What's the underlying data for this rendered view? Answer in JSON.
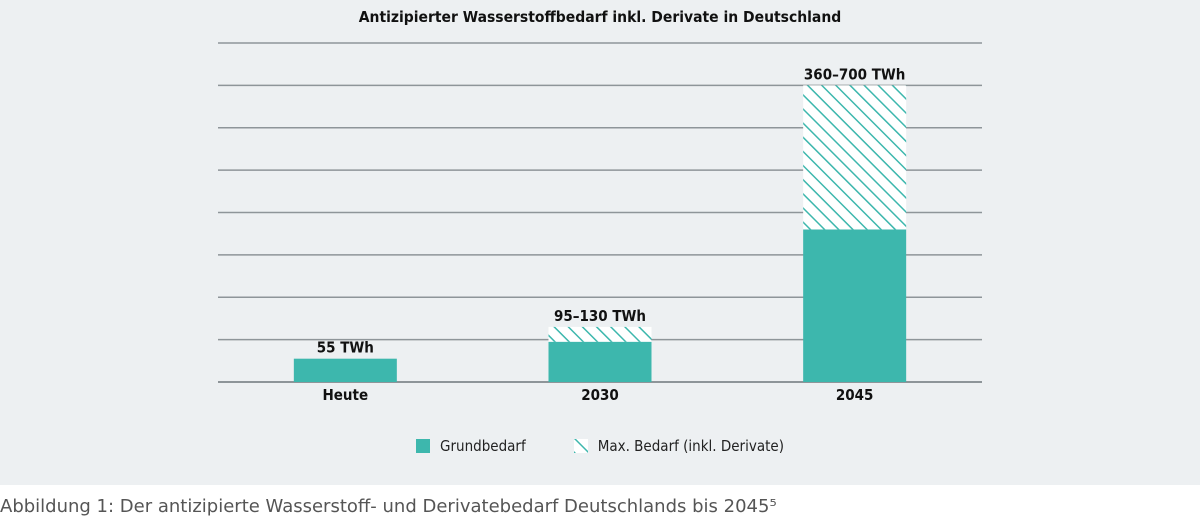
{
  "colors": {
    "base": "#3db7ad",
    "hatch": "#3db7ad",
    "grid": "#8e9599",
    "panel": "#edf0f2"
  },
  "chart_data": {
    "type": "bar",
    "title": "Antizipierter Wasserstoffbedarf inkl. Derivate in Deutschland",
    "categories": [
      "Heute",
      "2030",
      "2045"
    ],
    "series": [
      {
        "name": "Grundbedarf",
        "values": [
          55,
          95,
          360
        ]
      },
      {
        "name": "Max. Bedarf (inkl. Derivate)",
        "values": [
          0,
          35,
          340
        ]
      }
    ],
    "data_labels": [
      "55 TWh",
      "95–130 TWh",
      "360–700 TWh"
    ],
    "ylim": [
      0,
      800
    ],
    "y_ticks": [
      0,
      100,
      200,
      300,
      400,
      500,
      600,
      700,
      800
    ],
    "y_tick_labels_shown": false,
    "grid": true,
    "legend": "bottom-center",
    "stacked": true
  },
  "caption": "Abbildung 1: Der antizipierte Wasserstoff- und Derivatebedarf Deutschlands bis 2045⁵"
}
